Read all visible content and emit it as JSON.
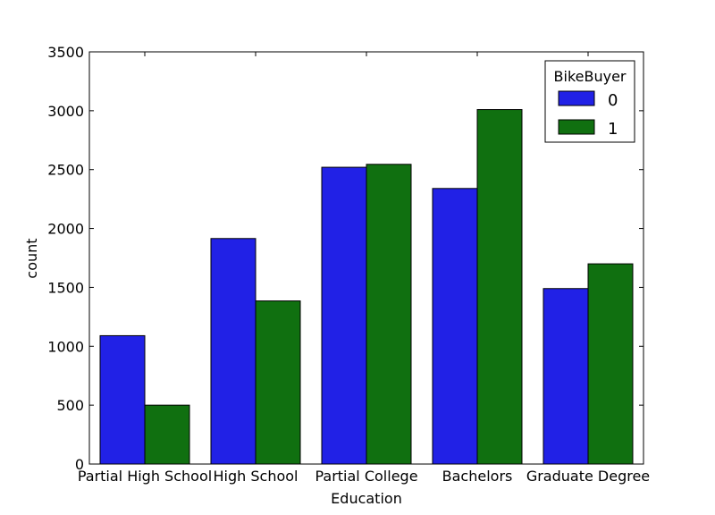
{
  "chart_data": {
    "type": "bar",
    "title": "",
    "xlabel": "Education",
    "ylabel": "count",
    "categories": [
      "Partial High School",
      "High School",
      "Partial College",
      "Bachelors",
      "Graduate Degree"
    ],
    "series": [
      {
        "name": "0",
        "color": "#2121e6",
        "values": [
          1090,
          1915,
          2520,
          2340,
          1490
        ]
      },
      {
        "name": "1",
        "color": "#107010",
        "values": [
          500,
          1385,
          2545,
          3010,
          1700
        ]
      }
    ],
    "ylim": [
      0,
      3500
    ],
    "yticks": [
      0,
      500,
      1000,
      1500,
      2000,
      2500,
      3000,
      3500
    ],
    "grid": false,
    "legend": {
      "title": "BikeBuyer",
      "placement": "top-right"
    }
  }
}
